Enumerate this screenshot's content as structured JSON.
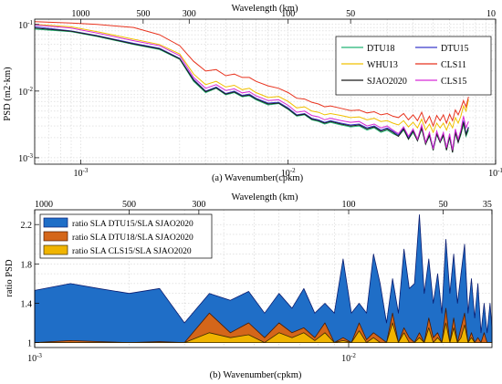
{
  "chart_data": [
    {
      "type": "line",
      "panel": "a",
      "top_axis_label": "Wavelength (km)",
      "top_ticks": [
        {
          "value": 1000,
          "label": "1000"
        },
        {
          "value": 500,
          "label": "500"
        },
        {
          "value": 300,
          "label": "300"
        },
        {
          "value": 100,
          "label": "100"
        },
        {
          "value": 50,
          "label": "50"
        },
        {
          "value": 10,
          "label": "10"
        }
      ],
      "xlabel": "(a) Wavenumber(cpkm)",
      "ylabel": "PSD (m2·km)",
      "x_scale": "log",
      "y_scale": "log",
      "xlim": [
        0.0006,
        0.1
      ],
      "ylim": [
        0.0008,
        0.12
      ],
      "x_ticks": [
        {
          "value": 0.001,
          "label": "10-3"
        },
        {
          "value": 0.01,
          "label": "10-2"
        },
        {
          "value": 0.1,
          "label": "10-1"
        }
      ],
      "y_ticks": [
        {
          "value": 0.001,
          "label": "10-3"
        },
        {
          "value": 0.01,
          "label": "10-2"
        },
        {
          "value": 0.1,
          "label": "10-1"
        }
      ],
      "grid": true,
      "legend_position": "top-right",
      "legend_columns": 2,
      "x": [
        0.0006,
        0.0009,
        0.0012,
        0.0018,
        0.0024,
        0.003,
        0.0035,
        0.004,
        0.0045,
        0.005,
        0.0055,
        0.006,
        0.0065,
        0.007,
        0.008,
        0.009,
        0.01,
        0.011,
        0.012,
        0.013,
        0.014,
        0.015,
        0.016,
        0.018,
        0.02,
        0.022,
        0.024,
        0.026,
        0.028,
        0.03,
        0.032,
        0.034,
        0.036,
        0.038,
        0.04,
        0.042,
        0.044,
        0.046,
        0.048,
        0.05,
        0.052,
        0.054,
        0.056,
        0.058,
        0.06,
        0.062,
        0.064,
        0.066,
        0.068,
        0.07,
        0.072,
        0.074
      ],
      "series": [
        {
          "name": "DTU18",
          "color": "#22b573",
          "values": [
            0.085,
            0.078,
            0.066,
            0.05,
            0.042,
            0.03,
            0.014,
            0.0095,
            0.011,
            0.0088,
            0.0095,
            0.0082,
            0.0085,
            0.0074,
            0.0062,
            0.0065,
            0.0053,
            0.0042,
            0.0044,
            0.0037,
            0.0035,
            0.0032,
            0.0034,
            0.0031,
            0.0029,
            0.003,
            0.0026,
            0.0028,
            0.0024,
            0.0026,
            0.0023,
            0.0021,
            0.0026,
            0.0019,
            0.0024,
            0.0018,
            0.0027,
            0.0016,
            0.0021,
            0.0013,
            0.0022,
            0.0017,
            0.0021,
            0.0013,
            0.002,
            0.0012,
            0.0023,
            0.0017,
            0.0022,
            0.0032,
            0.0021,
            0.0026
          ]
        },
        {
          "name": "DTU15",
          "color": "#3a3ac9",
          "values": [
            0.092,
            0.08,
            0.068,
            0.052,
            0.044,
            0.031,
            0.015,
            0.01,
            0.0115,
            0.0092,
            0.01,
            0.0086,
            0.009,
            0.0078,
            0.0066,
            0.0068,
            0.0056,
            0.0044,
            0.0046,
            0.0039,
            0.0037,
            0.0034,
            0.0036,
            0.0033,
            0.0031,
            0.0032,
            0.0028,
            0.003,
            0.0026,
            0.0028,
            0.0025,
            0.0022,
            0.0028,
            0.002,
            0.0026,
            0.0019,
            0.0029,
            0.0017,
            0.0023,
            0.0014,
            0.0024,
            0.0018,
            0.0023,
            0.0014,
            0.0022,
            0.0013,
            0.0025,
            0.0018,
            0.0024,
            0.0036,
            0.0023,
            0.0029
          ]
        },
        {
          "name": "WHU13",
          "color": "#f0c000",
          "values": [
            0.1,
            0.092,
            0.078,
            0.06,
            0.05,
            0.036,
            0.018,
            0.0125,
            0.014,
            0.0115,
            0.0122,
            0.0105,
            0.011,
            0.0095,
            0.008,
            0.0083,
            0.007,
            0.0056,
            0.0058,
            0.005,
            0.0048,
            0.0044,
            0.0046,
            0.0043,
            0.004,
            0.0041,
            0.0037,
            0.0039,
            0.0035,
            0.0036,
            0.0033,
            0.0031,
            0.0036,
            0.0029,
            0.0034,
            0.0028,
            0.0038,
            0.0026,
            0.0032,
            0.0024,
            0.0033,
            0.0028,
            0.0033,
            0.0026,
            0.0034,
            0.0028,
            0.004,
            0.0033,
            0.0042,
            0.006,
            0.005,
            0.0075
          ]
        },
        {
          "name": "CLS11",
          "color": "#e8331e",
          "values": [
            0.11,
            0.105,
            0.1,
            0.09,
            0.07,
            0.048,
            0.028,
            0.02,
            0.021,
            0.017,
            0.018,
            0.016,
            0.016,
            0.014,
            0.012,
            0.011,
            0.0095,
            0.0078,
            0.0076,
            0.0068,
            0.0064,
            0.0058,
            0.006,
            0.0055,
            0.0051,
            0.0052,
            0.0047,
            0.0049,
            0.0044,
            0.0046,
            0.0042,
            0.004,
            0.0046,
            0.0037,
            0.0044,
            0.0036,
            0.0048,
            0.0033,
            0.0042,
            0.003,
            0.0043,
            0.0036,
            0.0044,
            0.0033,
            0.0045,
            0.0036,
            0.0052,
            0.0044,
            0.0055,
            0.0072,
            0.0058,
            0.0082
          ]
        },
        {
          "name": "SJAO2020",
          "color": "#1a1a1a",
          "values": [
            0.088,
            0.079,
            0.067,
            0.051,
            0.043,
            0.0305,
            0.0145,
            0.0098,
            0.0112,
            0.009,
            0.0097,
            0.0084,
            0.0087,
            0.0076,
            0.0064,
            0.0066,
            0.0054,
            0.0043,
            0.0045,
            0.0038,
            0.0036,
            0.0033,
            0.0035,
            0.0032,
            0.003,
            0.0031,
            0.0027,
            0.0029,
            0.0025,
            0.0027,
            0.0024,
            0.0021,
            0.0027,
            0.0019,
            0.0025,
            0.0018,
            0.0028,
            0.0016,
            0.0022,
            0.0013,
            0.0023,
            0.0017,
            0.0022,
            0.0013,
            0.0021,
            0.0012,
            0.0024,
            0.0017,
            0.0023,
            0.0034,
            0.0022,
            0.0028
          ]
        },
        {
          "name": "CLS15",
          "color": "#d62ad6",
          "values": [
            0.098,
            0.088,
            0.074,
            0.057,
            0.048,
            0.034,
            0.016,
            0.011,
            0.0125,
            0.0102,
            0.0108,
            0.0094,
            0.0098,
            0.0085,
            0.0072,
            0.0074,
            0.0061,
            0.0048,
            0.005,
            0.0043,
            0.0041,
            0.0037,
            0.0039,
            0.0036,
            0.0034,
            0.0035,
            0.003,
            0.0032,
            0.0028,
            0.003,
            0.0026,
            0.0023,
            0.0029,
            0.0021,
            0.0027,
            0.0019,
            0.0031,
            0.0017,
            0.0024,
            0.00135,
            0.0025,
            0.0018,
            0.0024,
            0.0014,
            0.0023,
            0.0013,
            0.0027,
            0.0019,
            0.0026,
            0.0042,
            0.0028,
            0.0035
          ]
        }
      ]
    },
    {
      "type": "area",
      "panel": "b",
      "top_axis_label": "Wavelength (km)",
      "top_ticks": [
        {
          "value": 1000,
          "label": "1000"
        },
        {
          "value": 500,
          "label": "500"
        },
        {
          "value": 300,
          "label": "300"
        },
        {
          "value": 100,
          "label": "100"
        },
        {
          "value": 50,
          "label": "50"
        },
        {
          "value": 35,
          "label": "35"
        }
      ],
      "xlabel": "(b) Wavenumber(cpkm)",
      "ylabel": "ratio PSD",
      "x_scale": "log",
      "y_scale": "linear",
      "xlim": [
        0.001,
        0.0286
      ],
      "ylim": [
        0.95,
        2.35
      ],
      "x_ticks": [
        {
          "value": 0.001,
          "label": "10-3"
        },
        {
          "value": 0.01,
          "label": "10-2"
        }
      ],
      "y_ticks": [
        {
          "value": 1,
          "label": "1"
        },
        {
          "value": 1.4,
          "label": "1.4"
        },
        {
          "value": 1.8,
          "label": "1.8"
        },
        {
          "value": 2.2,
          "label": "2.2"
        }
      ],
      "grid": true,
      "legend_position": "top-left",
      "x": [
        0.001,
        0.0013,
        0.0016,
        0.002,
        0.0025,
        0.003,
        0.0036,
        0.0042,
        0.0048,
        0.0054,
        0.006,
        0.0066,
        0.0072,
        0.0078,
        0.0084,
        0.009,
        0.0096,
        0.0102,
        0.0108,
        0.0114,
        0.012,
        0.0126,
        0.0132,
        0.0138,
        0.0144,
        0.015,
        0.0156,
        0.0162,
        0.0168,
        0.0174,
        0.018,
        0.0186,
        0.0192,
        0.0198,
        0.0204,
        0.021,
        0.0216,
        0.0222,
        0.0228,
        0.0234,
        0.024,
        0.0246,
        0.0252,
        0.0258,
        0.0264,
        0.027,
        0.0276,
        0.0282,
        0.0286
      ],
      "series": [
        {
          "name": "ratio SLA DTU15/SLA SJAO2020",
          "color": "#1f6ec7",
          "edge": "#0a1c70",
          "values": [
            1.53,
            1.6,
            1.55,
            1.5,
            1.55,
            1.2,
            1.5,
            1.43,
            1.52,
            1.3,
            1.5,
            1.35,
            1.55,
            1.3,
            1.4,
            1.3,
            1.85,
            1.3,
            1.4,
            1.3,
            1.9,
            1.6,
            1.2,
            1.65,
            1.3,
            1.95,
            1.55,
            1.6,
            2.3,
            1.5,
            1.85,
            1.4,
            1.7,
            1.3,
            2.05,
            1.5,
            1.9,
            1.4,
            1.7,
            2.0,
            1.3,
            1.65,
            1.25,
            1.6,
            1.1,
            1.4,
            1.1,
            1.4,
            1.15
          ]
        },
        {
          "name": "ratio SLA DTU18/SLA SJAO2020",
          "color": "#d4661a",
          "edge": "#4a1a00",
          "values": [
            1.0,
            1.02,
            1.01,
            1.0,
            1.01,
            1.0,
            1.3,
            1.1,
            1.2,
            1.05,
            1.2,
            1.1,
            1.15,
            1.05,
            1.2,
            1.0,
            1.05,
            1.0,
            1.2,
            1.03,
            1.1,
            1.05,
            1.0,
            1.3,
            1.0,
            1.15,
            1.05,
            1.0,
            1.1,
            1.0,
            1.25,
            1.05,
            1.1,
            1.0,
            1.35,
            1.0,
            1.25,
            1.0,
            1.15,
            1.3,
            1.0,
            1.1,
            1.0,
            1.05,
            1.0,
            1.1,
            1.0,
            1.0,
            1.0
          ]
        },
        {
          "name": "ratio SLA CLS15/SLA SJAO2020",
          "color": "#f0b400",
          "edge": "#3a2a00",
          "values": [
            1.0,
            1.0,
            1.0,
            1.0,
            1.0,
            1.0,
            1.1,
            1.05,
            1.08,
            1.0,
            1.1,
            1.05,
            1.1,
            1.02,
            1.1,
            1.0,
            1.02,
            1.0,
            1.12,
            1.0,
            1.05,
            1.0,
            1.0,
            1.2,
            1.0,
            1.1,
            1.0,
            1.0,
            1.05,
            1.0,
            1.15,
            1.0,
            1.05,
            1.0,
            1.2,
            1.0,
            1.15,
            1.0,
            1.05,
            1.18,
            1.0,
            1.05,
            1.0,
            1.0,
            1.0,
            1.0,
            1.0,
            1.0,
            1.0
          ]
        }
      ]
    }
  ]
}
